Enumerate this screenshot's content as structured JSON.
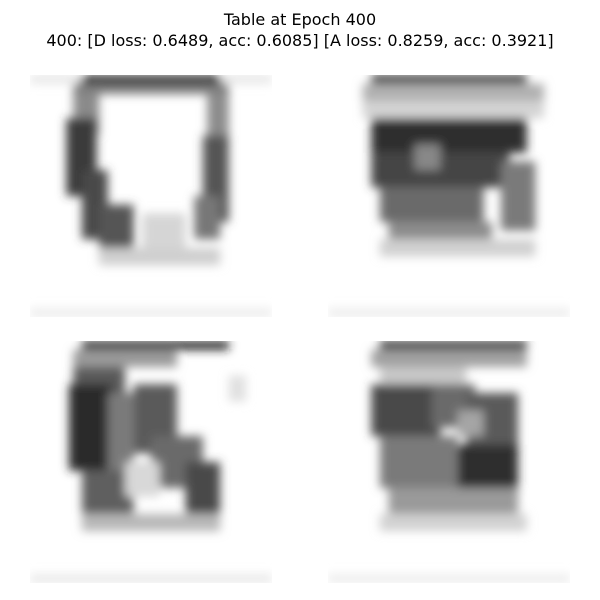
{
  "figure": {
    "title": "Table at Epoch 400",
    "subtitle": "400: [D loss: 0.6489, acc: 0.6085]  [A loss: 0.8259, acc: 0.3921]"
  },
  "images": [
    {
      "id": "sample-1",
      "description": "blurred grayscale generated table image, dark top bar and two dark side legs with light center"
    },
    {
      "id": "sample-2",
      "description": "blurred grayscale generated table image, dark textured block with top bar"
    },
    {
      "id": "sample-3",
      "description": "blurred grayscale generated table image, dark top bar with dark left region and lighter diagonal right side"
    },
    {
      "id": "sample-4",
      "description": "blurred grayscale generated table image, dark top bar with mottled dark central block"
    }
  ]
}
